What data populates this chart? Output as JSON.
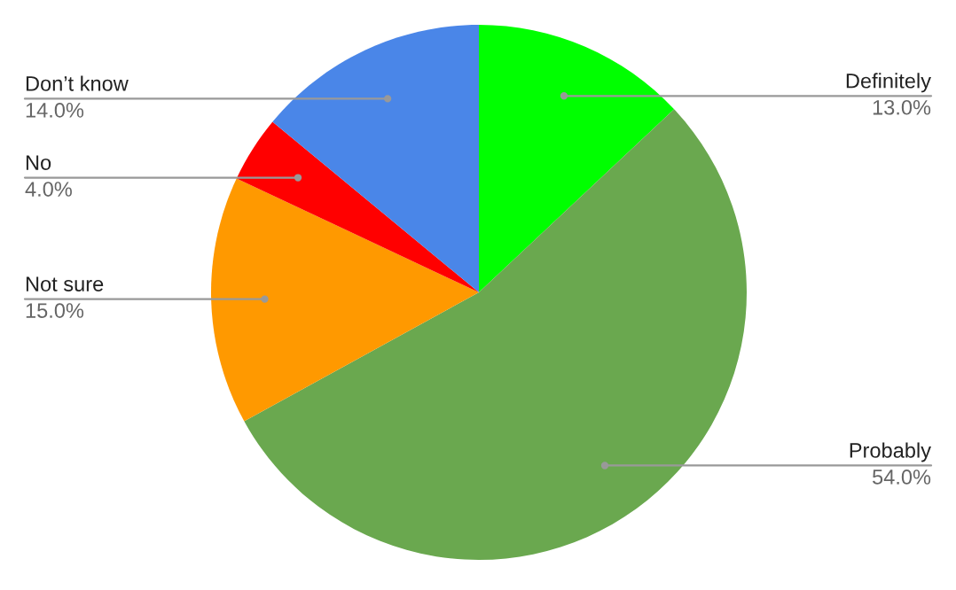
{
  "chart_data": {
    "type": "pie",
    "categories": [
      "Definitely",
      "Probably",
      "Not sure",
      "No",
      "Don’t know"
    ],
    "values": [
      13,
      54,
      15,
      4,
      14
    ],
    "colors": [
      "#00ff00",
      "#6aa84f",
      "#ff9900",
      "#ff0000",
      "#4a86e8"
    ],
    "value_labels": [
      "13.0%",
      "54.0%",
      "15.0%",
      "4.0%",
      "14.0%"
    ]
  }
}
